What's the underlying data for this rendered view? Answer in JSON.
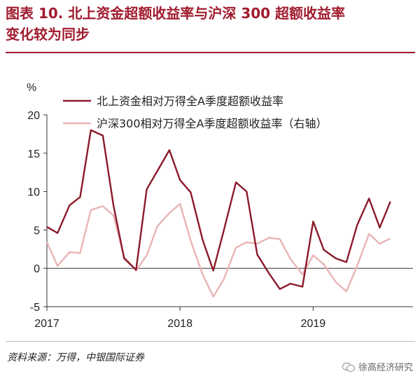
{
  "title": {
    "line1": "图表 10. 北上资金超额收益率与沪深 300 超额收益率",
    "line2": "变化较为同步"
  },
  "source": "资料来源：万得，中银国际证券",
  "watermark": "徐高经济研究",
  "watermark_icon": "wechat-icon",
  "colors": {
    "title": "#a01c2e",
    "series1": "#8b1a2b",
    "series2": "#e9b4b4",
    "axis": "#333333"
  },
  "chart_data": {
    "type": "line",
    "y_unit": "%",
    "ylim": [
      -5,
      20
    ],
    "y_ticks": [
      -5,
      0,
      5,
      10,
      15,
      20
    ],
    "x_tick_labels": [
      {
        "label": "2017",
        "x": 2017.0
      },
      {
        "label": "2018",
        "x": 2018.0
      },
      {
        "label": "2019",
        "x": 2019.0
      }
    ],
    "xlim": [
      2017.0,
      2019.75
    ],
    "grid": false,
    "legend_position": "top",
    "series": [
      {
        "name": "北上资金相对万得全A季度超额收益率",
        "axis": "left",
        "points": [
          [
            2017.0,
            5.4
          ],
          [
            2017.08,
            4.6
          ],
          [
            2017.17,
            8.2
          ],
          [
            2017.25,
            9.3
          ],
          [
            2017.33,
            18.0
          ],
          [
            2017.42,
            17.3
          ],
          [
            2017.5,
            8.2
          ],
          [
            2017.58,
            1.3
          ],
          [
            2017.67,
            -0.2
          ],
          [
            2017.75,
            10.3
          ],
          [
            2017.83,
            12.7
          ],
          [
            2017.92,
            15.4
          ],
          [
            2018.0,
            11.5
          ],
          [
            2018.08,
            9.9
          ],
          [
            2018.17,
            3.7
          ],
          [
            2018.25,
            -0.3
          ],
          [
            2018.33,
            5.0
          ],
          [
            2018.42,
            11.2
          ],
          [
            2018.5,
            10.0
          ],
          [
            2018.58,
            1.8
          ],
          [
            2018.67,
            -0.7
          ],
          [
            2018.75,
            -2.7
          ],
          [
            2018.83,
            -2.0
          ],
          [
            2018.92,
            -2.4
          ],
          [
            2019.0,
            6.1
          ],
          [
            2019.08,
            2.4
          ],
          [
            2019.17,
            1.3
          ],
          [
            2019.25,
            0.8
          ],
          [
            2019.33,
            5.6
          ],
          [
            2019.42,
            9.1
          ],
          [
            2019.5,
            5.3
          ],
          [
            2019.58,
            8.7
          ]
        ]
      },
      {
        "name": "沪深300相对万得全A季度超额收益率（右轴）",
        "axis": "right",
        "points": [
          [
            2017.0,
            3.4
          ],
          [
            2017.08,
            0.3
          ],
          [
            2017.17,
            2.1
          ],
          [
            2017.25,
            2.0
          ],
          [
            2017.33,
            7.6
          ],
          [
            2017.42,
            8.1
          ],
          [
            2017.5,
            6.9
          ],
          [
            2017.58,
            1.5
          ],
          [
            2017.67,
            -0.3
          ],
          [
            2017.75,
            1.7
          ],
          [
            2017.83,
            5.5
          ],
          [
            2017.92,
            7.2
          ],
          [
            2018.0,
            8.4
          ],
          [
            2018.08,
            3.6
          ],
          [
            2018.17,
            -0.8
          ],
          [
            2018.25,
            -3.7
          ],
          [
            2018.33,
            -1.4
          ],
          [
            2018.42,
            2.7
          ],
          [
            2018.5,
            3.4
          ],
          [
            2018.58,
            3.2
          ],
          [
            2018.67,
            4.0
          ],
          [
            2018.75,
            3.8
          ],
          [
            2018.83,
            1.2
          ],
          [
            2018.92,
            -0.8
          ],
          [
            2019.0,
            1.7
          ],
          [
            2019.08,
            0.5
          ],
          [
            2019.17,
            -1.8
          ],
          [
            2019.25,
            -3.0
          ],
          [
            2019.33,
            0.3
          ],
          [
            2019.42,
            4.5
          ],
          [
            2019.5,
            3.2
          ],
          [
            2019.58,
            3.9
          ]
        ]
      }
    ]
  }
}
